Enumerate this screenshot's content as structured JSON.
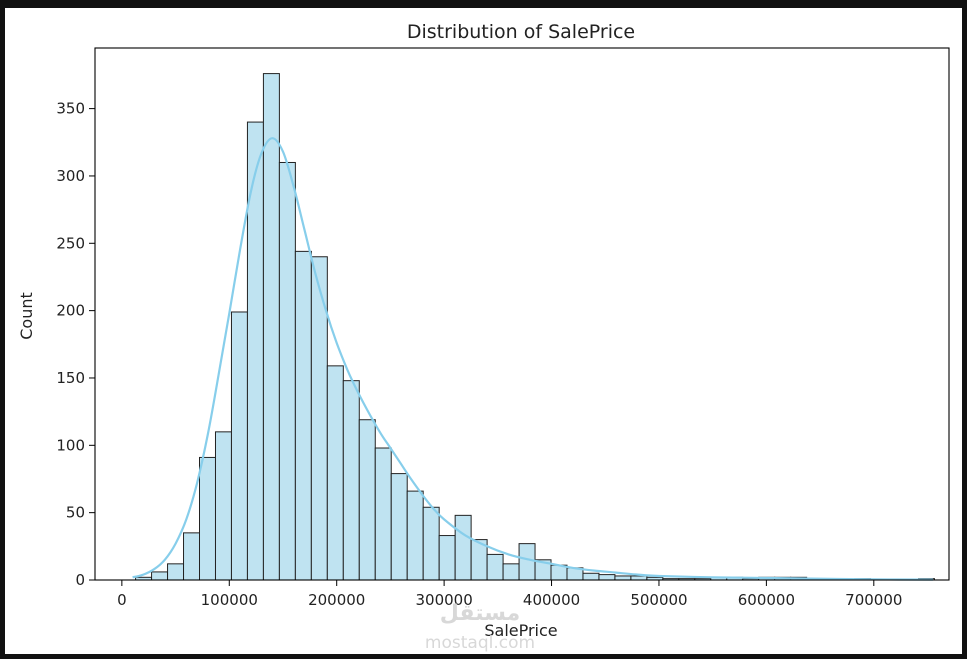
{
  "chart_data": {
    "type": "histogram",
    "title": "Distribution of SalePrice",
    "xlabel": "SalePrice",
    "ylabel": "Count",
    "xlim": [
      -25000,
      770000
    ],
    "ylim": [
      0,
      395
    ],
    "xticks": [
      0,
      100000,
      200000,
      300000,
      400000,
      500000,
      600000,
      700000
    ],
    "yticks": [
      0,
      50,
      100,
      150,
      200,
      250,
      300,
      350
    ],
    "bin_start": 12789,
    "bin_width": 14874,
    "counts": [
      2,
      6,
      12,
      35,
      91,
      110,
      199,
      340,
      376,
      310,
      244,
      240,
      159,
      148,
      119,
      98,
      79,
      66,
      54,
      33,
      48,
      30,
      19,
      12,
      27,
      15,
      11,
      9,
      5,
      4,
      3,
      3,
      2,
      1,
      1,
      1,
      2,
      2,
      1,
      2,
      2,
      2,
      1,
      0,
      0,
      1,
      0,
      0,
      0,
      1
    ],
    "kde": {
      "x": [
        10000,
        20000,
        30000,
        40000,
        50000,
        60000,
        70000,
        80000,
        90000,
        100000,
        110000,
        120000,
        130000,
        140000,
        150000,
        160000,
        170000,
        180000,
        190000,
        200000,
        210000,
        220000,
        230000,
        240000,
        250000,
        260000,
        270000,
        280000,
        290000,
        300000,
        320000,
        340000,
        360000,
        380000,
        400000,
        420000,
        440000,
        460000,
        480000,
        500000,
        550000,
        600000,
        650000,
        700000,
        755000
      ],
      "y": [
        2,
        4,
        8,
        15,
        27,
        45,
        72,
        108,
        152,
        198,
        245,
        288,
        317,
        328,
        318,
        292,
        260,
        228,
        200,
        176,
        156,
        139,
        124,
        110,
        98,
        86,
        74,
        63,
        53,
        45,
        33,
        25,
        19,
        15,
        12,
        9,
        7,
        5.5,
        4,
        3,
        2,
        1.5,
        1,
        0.5,
        0.3
      ],
      "color": "#87ceeb"
    },
    "bar_fill": "#bfe3f1",
    "bar_edge": "#222222",
    "grid": false,
    "legend": "none"
  },
  "watermark": {
    "line1": "مستقل",
    "line2": "mostaql.com"
  }
}
